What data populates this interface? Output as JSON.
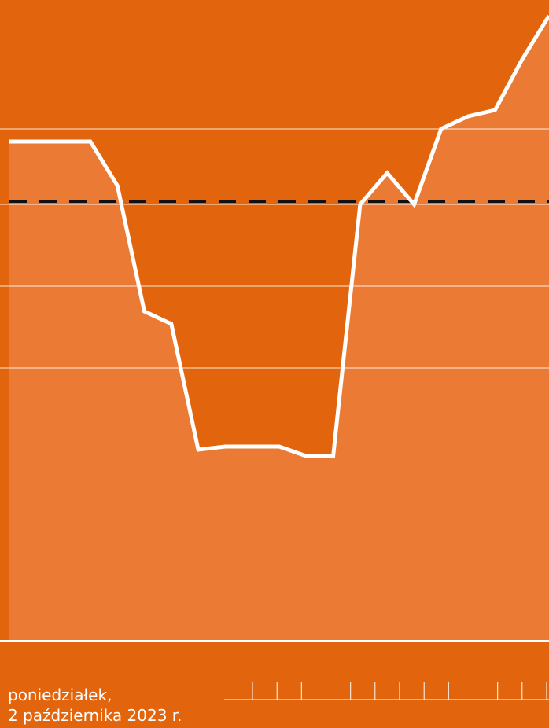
{
  "page": {
    "background_color": "#e2640c",
    "fill_color": "#eb7b34",
    "line_color": "#ffffff",
    "reference_line_color": "#111111",
    "gridline_color": "#ffffff"
  },
  "date_label": {
    "line1": "poniedziałek,",
    "line2": "2 października 2023 r."
  },
  "chart_data": {
    "type": "area",
    "title": "",
    "xlabel": "",
    "ylabel": "",
    "x": [
      0,
      3,
      4,
      5,
      6,
      7,
      8,
      9,
      10,
      11,
      12,
      13,
      14,
      15,
      16,
      17,
      18,
      19,
      20
    ],
    "series": [
      {
        "values": [
          85,
          85,
          78,
          58,
          56,
          36,
          36.5,
          36.5,
          36.5,
          35,
          35,
          75,
          80,
          75,
          87,
          89,
          90,
          98,
          105
        ]
      }
    ],
    "reference_line": {
      "y": 75.5,
      "style": "dashed"
    },
    "gridlines_y": [
      87,
      75,
      62,
      49
    ],
    "xlim": [
      0,
      20
    ],
    "ylim": [
      30,
      105
    ],
    "x_ticks_count": 13,
    "grid": true,
    "legend": "none"
  }
}
